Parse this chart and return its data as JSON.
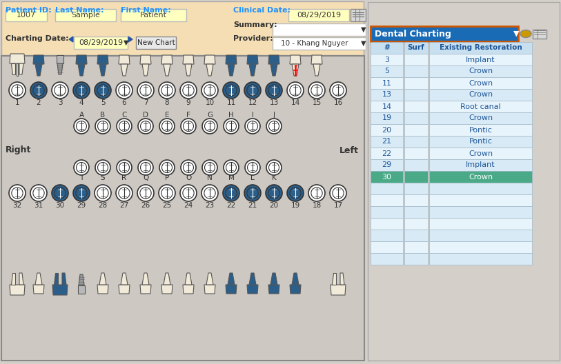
{
  "bg_color": "#d4cfc9",
  "header_bg": "#f5deb3",
  "chart_area_bg": "#cdc8c2",
  "patient_id": "1007",
  "last_name": "Sample",
  "first_name": "Patient",
  "clinical_date": "08/29/2019",
  "charting_date": "08/29/2019",
  "provider": "10 - Khang Nguyer",
  "header_text_color": "#1e90ff",
  "table_header_bg": "#c8dff0",
  "table_row_bg1": "#e8f4fb",
  "table_row_bg2": "#d8eaf5",
  "selected_row_bg": "#4aaa88",
  "table_border": "#a0b8c8",
  "upper_numbered": [
    1,
    2,
    3,
    4,
    5,
    6,
    7,
    8,
    9,
    10,
    11,
    12,
    13,
    14,
    15,
    16
  ],
  "upper_lettered": [
    "A",
    "B",
    "C",
    "D",
    "E",
    "F",
    "G",
    "H",
    "I",
    "J"
  ],
  "lower_numbered": [
    32,
    31,
    30,
    29,
    28,
    27,
    26,
    25,
    24,
    23,
    22,
    21,
    20,
    19,
    18,
    17
  ],
  "lower_lettered": [
    "T",
    "S",
    "R",
    "Q",
    "P",
    "O",
    "N",
    "M",
    "L",
    "K"
  ],
  "blue_upper_teeth": [
    2,
    4,
    5,
    11,
    12,
    13
  ],
  "blue_lower_teeth": [
    30,
    29,
    22,
    21,
    20,
    19
  ],
  "table_data": [
    [
      "3",
      "",
      "Implant"
    ],
    [
      "5",
      "",
      "Crown"
    ],
    [
      "11",
      "",
      "Crown"
    ],
    [
      "13",
      "",
      "Crown"
    ],
    [
      "14",
      "",
      "Root canal"
    ],
    [
      "19",
      "",
      "Crown"
    ],
    [
      "20",
      "",
      "Pontic"
    ],
    [
      "21",
      "",
      "Pontic"
    ],
    [
      "22",
      "",
      "Crown"
    ],
    [
      "29",
      "",
      "Implant"
    ],
    [
      "30",
      "",
      "Crown"
    ]
  ]
}
